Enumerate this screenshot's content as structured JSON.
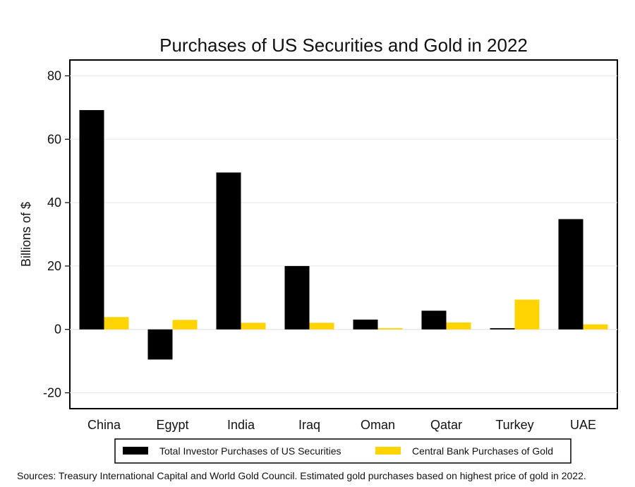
{
  "chart_data": {
    "type": "bar",
    "title": "Purchases of US Securities and Gold in 2022",
    "xlabel": "",
    "ylabel": "Billions of $",
    "categories": [
      "China",
      "Egypt",
      "India",
      "Iraq",
      "Oman",
      "Qatar",
      "Turkey",
      "UAE"
    ],
    "series": [
      {
        "name": "Total Investor Purchases of US Securities",
        "color": "#000000",
        "values": [
          69.2,
          -9.5,
          49.5,
          20.0,
          3.1,
          5.9,
          0.4,
          34.8
        ]
      },
      {
        "name": "Central Bank Purchases of Gold",
        "color": "#FFD400",
        "values": [
          3.9,
          3.0,
          2.1,
          2.1,
          0.4,
          2.2,
          9.4,
          1.6
        ]
      }
    ],
    "ylim": [
      -25,
      85
    ],
    "yticks": [
      -20,
      0,
      20,
      40,
      60,
      80
    ],
    "grid": true,
    "legend_position": "bottom"
  },
  "source_note": "Sources: Treasury International Capital and World Gold Council.  Estimated gold purchases based on highest price of gold in 2022."
}
